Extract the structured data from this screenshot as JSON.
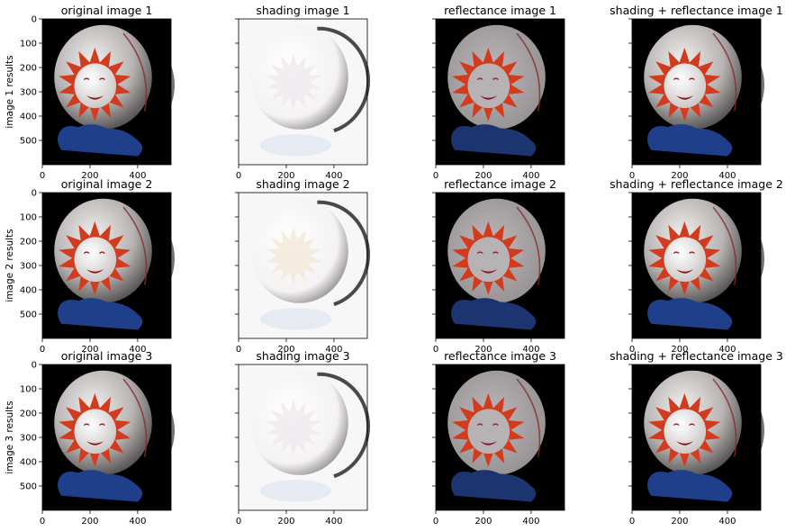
{
  "figure": {
    "row_labels": [
      "image 1 results",
      "image 2 results",
      "image 3 results"
    ],
    "panel_titles": [
      [
        "original image 1",
        "shading image 1",
        "reflectance image 1",
        "shading + reflectance image 1"
      ],
      [
        "original image 2",
        "shading image 2",
        "reflectance image 2",
        "shading + reflectance image 2"
      ],
      [
        "original image 3",
        "shading image 3",
        "reflectance image 3",
        "shading + reflectance image 3"
      ]
    ]
  },
  "chart_data": {
    "type": "image_grid",
    "rows": 3,
    "cols": 4,
    "x_ticks": [
      0,
      200,
      400
    ],
    "y_ticks": [
      0,
      100,
      200,
      300,
      400,
      500
    ],
    "xlim": [
      0,
      540
    ],
    "ylim": [
      600,
      0
    ],
    "colors": {
      "background": "#000000",
      "body": "#d9d4d4",
      "sun": "#d23b1e",
      "clouds": "#1f3f8a",
      "shading_bg": "#f7f7f7"
    }
  }
}
